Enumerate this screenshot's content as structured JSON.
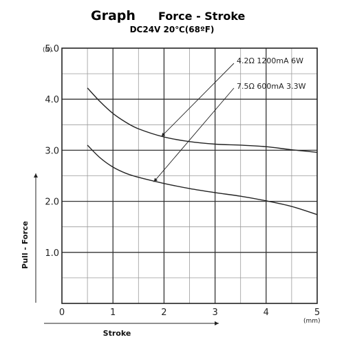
{
  "header": {
    "title_graph": "Graph",
    "title_rest": "Force - Stroke",
    "subtitle": "DC24V  20℃(68ºF)"
  },
  "chart_data": {
    "type": "line",
    "title": "Graph  Force - Stroke",
    "subtitle": "DC24V  20℃(68ºF)",
    "xlabel": "Stroke",
    "ylabel": "Pull - Force",
    "x_unit": "(mm)",
    "y_unit": "(N)",
    "xlim": [
      0,
      5
    ],
    "ylim": [
      0,
      5.0
    ],
    "x_ticks": [
      "0",
      "1",
      "2",
      "3",
      "4",
      "5"
    ],
    "y_ticks": [
      "1.0",
      "2.0",
      "3.0",
      "4.0",
      "5.0"
    ],
    "grid": true,
    "series": [
      {
        "name": "4.2Ω 1200mA 6W",
        "x": [
          0.5,
          0.75,
          1.0,
          1.25,
          1.5,
          2.0,
          2.5,
          3.0,
          3.5,
          4.0,
          4.5,
          5.0
        ],
        "y": [
          4.22,
          3.95,
          3.72,
          3.55,
          3.42,
          3.26,
          3.17,
          3.12,
          3.1,
          3.07,
          3.01,
          2.96
        ]
      },
      {
        "name": "7.5Ω 600mA 3.3W",
        "x": [
          0.5,
          0.75,
          1.0,
          1.25,
          1.5,
          2.0,
          2.5,
          3.0,
          3.5,
          4.0,
          4.5,
          5.0
        ],
        "y": [
          3.1,
          2.85,
          2.67,
          2.55,
          2.47,
          2.35,
          2.25,
          2.17,
          2.1,
          2.01,
          1.9,
          1.74
        ]
      }
    ],
    "annotations": [
      "4.2Ω 1200mA 6W",
      "7.5Ω 600mA 3.3W"
    ]
  }
}
